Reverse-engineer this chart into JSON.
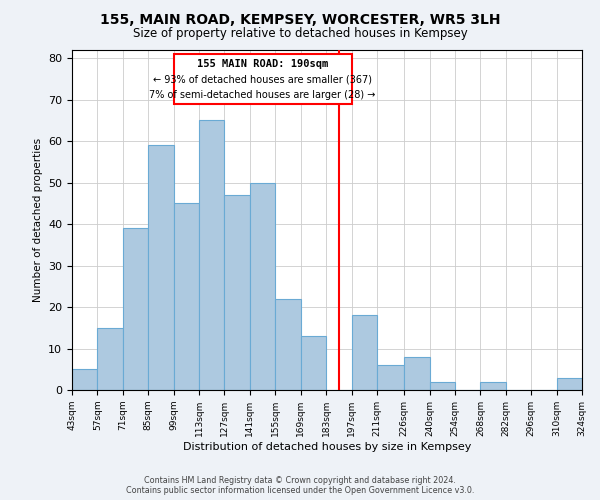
{
  "title": "155, MAIN ROAD, KEMPSEY, WORCESTER, WR5 3LH",
  "subtitle": "Size of property relative to detached houses in Kempsey",
  "xlabel": "Distribution of detached houses by size in Kempsey",
  "ylabel": "Number of detached properties",
  "bar_color": "#adc9e0",
  "bar_edge_color": "#6aaad4",
  "reference_line_x": 190,
  "reference_line_color": "red",
  "annotation_title": "155 MAIN ROAD: 190sqm",
  "annotation_line1": "← 93% of detached houses are smaller (367)",
  "annotation_line2": "7% of semi-detached houses are larger (28) →",
  "bin_edges": [
    43,
    57,
    71,
    85,
    99,
    113,
    127,
    141,
    155,
    169,
    183,
    197,
    211,
    226,
    240,
    254,
    268,
    282,
    296,
    310,
    324
  ],
  "bin_counts": [
    5,
    15,
    39,
    59,
    45,
    65,
    47,
    50,
    22,
    13,
    0,
    18,
    6,
    8,
    2,
    0,
    2,
    0,
    0,
    3
  ],
  "ylim": [
    0,
    82
  ],
  "yticks": [
    0,
    10,
    20,
    30,
    40,
    50,
    60,
    70,
    80
  ],
  "tick_labels": [
    "43sqm",
    "57sqm",
    "71sqm",
    "85sqm",
    "99sqm",
    "113sqm",
    "127sqm",
    "141sqm",
    "155sqm",
    "169sqm",
    "183sqm",
    "197sqm",
    "211sqm",
    "226sqm",
    "240sqm",
    "254sqm",
    "268sqm",
    "282sqm",
    "296sqm",
    "310sqm",
    "324sqm"
  ],
  "footer_line1": "Contains HM Land Registry data © Crown copyright and database right 2024.",
  "footer_line2": "Contains public sector information licensed under the Open Government Licence v3.0.",
  "background_color": "#eef2f7",
  "plot_background": "#ffffff",
  "fig_width": 6.0,
  "fig_height": 5.0,
  "dpi": 100
}
